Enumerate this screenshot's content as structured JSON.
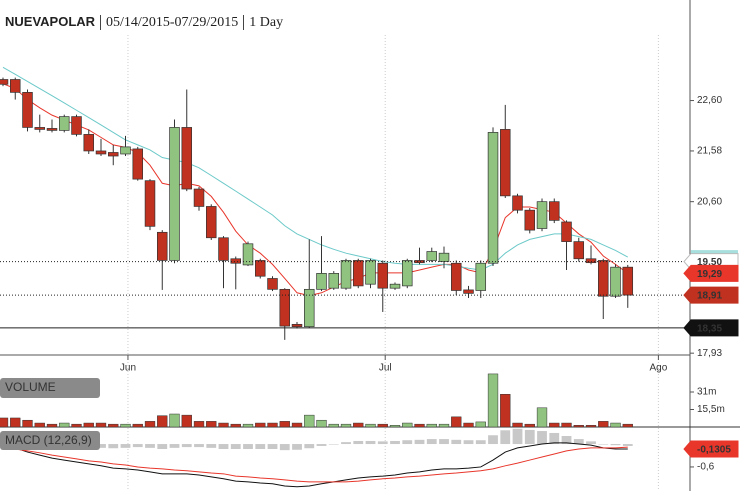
{
  "chart_data": [
    {
      "type": "candlestick",
      "title": "NUEVAPOLAR",
      "subtitle": "05/14/2015-07/29/2015",
      "interval": "1 Day",
      "log_scale": true,
      "ylim": [
        17.9,
        23.78
      ],
      "xlim": [
        -0.245,
        56.08
      ],
      "yticks": [
        {
          "value": 22.6,
          "label": "22,60"
        },
        {
          "value": 21.58,
          "label": "21,58"
        },
        {
          "value": 20.6,
          "label": "20,60"
        },
        {
          "value": 17.93,
          "label": "17,93"
        }
      ],
      "xticks": [
        {
          "value": 10.2,
          "label": "Jun"
        },
        {
          "value": 31.2,
          "label": "Jul"
        },
        {
          "value": 53.5,
          "label": "Ago"
        }
      ],
      "up_color": "#8fc37f",
      "down_color": "#c0311f",
      "open": [
        23.04,
        23.04,
        22.77,
        22.05,
        22.03,
        21.99,
        22.27,
        21.91,
        21.58,
        21.55,
        21.52,
        21.62,
        21.0,
        20.03,
        19.52,
        22.05,
        20.84,
        20.51,
        19.93,
        19.55,
        19.44,
        19.52,
        19.2,
        19.01,
        18.41,
        18.37,
        19.01,
        19.03,
        19.03,
        19.52,
        19.1,
        19.47,
        19.03,
        19.07,
        19.52,
        19.52,
        19.5,
        19.47,
        19.0,
        18.99,
        19.47,
        22.01,
        20.71,
        20.44,
        20.1,
        20.6,
        20.22,
        19.86,
        19.55,
        19.52,
        18.89,
        19.4
      ],
      "high": [
        23.08,
        23.08,
        22.83,
        22.31,
        22.21,
        22.31,
        22.31,
        22.01,
        21.82,
        21.7,
        21.88,
        21.66,
        21.03,
        20.07,
        22.21,
        22.83,
        20.88,
        20.55,
        19.96,
        19.59,
        19.86,
        19.55,
        19.24,
        19.03,
        18.45,
        19.9,
        19.96,
        19.33,
        19.55,
        19.55,
        19.55,
        19.52,
        19.13,
        19.55,
        19.75,
        19.75,
        19.77,
        19.52,
        19.07,
        19.52,
        22.05,
        22.51,
        20.75,
        20.48,
        20.66,
        20.66,
        20.25,
        19.93,
        19.79,
        19.55,
        19.45,
        19.44
      ],
      "low": [
        22.9,
        22.62,
        21.97,
        21.95,
        21.95,
        21.95,
        21.87,
        21.52,
        21.48,
        21.3,
        21.48,
        21.0,
        20.07,
        19.0,
        19.47,
        20.8,
        20.43,
        19.89,
        19.03,
        19.01,
        19.42,
        19.2,
        18.98,
        18.15,
        18.34,
        18.35,
        18.98,
        19.0,
        19.0,
        19.03,
        19.03,
        18.62,
        19.0,
        19.03,
        19.45,
        19.49,
        19.38,
        18.91,
        18.86,
        18.86,
        19.42,
        20.67,
        20.38,
        20.01,
        20.05,
        20.2,
        19.35,
        19.5,
        19.45,
        18.5,
        18.86,
        18.69
      ],
      "close": [
        22.94,
        22.77,
        22.05,
        22.01,
        21.99,
        22.27,
        21.91,
        21.58,
        21.52,
        21.48,
        21.66,
        21.03,
        20.14,
        19.52,
        22.05,
        20.84,
        20.51,
        19.93,
        19.52,
        19.47,
        19.82,
        19.24,
        19.01,
        18.38,
        18.37,
        19.01,
        19.29,
        19.29,
        19.52,
        19.07,
        19.52,
        19.03,
        19.1,
        19.52,
        19.48,
        19.68,
        19.65,
        18.99,
        18.94,
        19.47,
        21.95,
        20.71,
        20.44,
        20.07,
        20.6,
        20.25,
        19.86,
        19.55,
        19.48,
        18.89,
        19.4,
        18.91
      ],
      "overlays": [
        {
          "color": "#e8362b",
          "values": [
            22.95,
            22.85,
            22.62,
            22.45,
            22.3,
            22.2,
            22.1,
            22.0,
            21.85,
            21.7,
            21.65,
            21.55,
            21.3,
            20.95,
            20.9,
            20.95,
            20.9,
            20.7,
            20.4,
            20.05,
            19.8,
            19.65,
            19.45,
            19.2,
            18.95,
            18.9,
            18.95,
            19.05,
            19.15,
            19.2,
            19.3,
            19.3,
            19.3,
            19.3,
            19.35,
            19.4,
            19.45,
            19.45,
            19.35,
            19.3,
            19.7,
            20.3,
            20.5,
            20.5,
            20.45,
            20.4,
            20.2,
            20.0,
            19.85,
            19.6,
            19.45,
            19.29
          ]
        },
        {
          "color": "#6cc9c9",
          "values": [
            23.3,
            23.15,
            23.0,
            22.85,
            22.7,
            22.55,
            22.4,
            22.25,
            22.1,
            21.95,
            21.8,
            21.7,
            21.6,
            21.45,
            21.4,
            21.35,
            21.25,
            21.1,
            20.95,
            20.8,
            20.65,
            20.5,
            20.35,
            20.15,
            20.0,
            19.9,
            19.8,
            19.72,
            19.65,
            19.6,
            19.55,
            19.5,
            19.47,
            19.45,
            19.45,
            19.45,
            19.45,
            19.42,
            19.38,
            19.35,
            19.45,
            19.65,
            19.8,
            19.9,
            19.95,
            20.0,
            20.0,
            19.95,
            19.9,
            19.8,
            19.7,
            19.58
          ]
        }
      ],
      "price_lines": [
        {
          "value": 19.5,
          "label": "19,50",
          "color": "#ffffff",
          "line": "dotted"
        },
        {
          "value": 19.29,
          "label": "19,29",
          "color": "#e8362b"
        },
        {
          "value": 18.91,
          "label": "18,91",
          "color": "#c0311f",
          "line": "dotted"
        },
        {
          "value": 18.35,
          "label": "18,35",
          "color": "#111111",
          "line": "solid"
        }
      ]
    },
    {
      "type": "volume",
      "title": "VOLUME",
      "ylim": [
        0,
        48.7
      ],
      "yticks": [
        {
          "value": 31,
          "label": "31m"
        },
        {
          "value": 15.5,
          "label": "15,5m"
        }
      ],
      "values": [
        8,
        8,
        6,
        3.5,
        2.5,
        3.5,
        2.5,
        3.5,
        3.5,
        2.5,
        2.5,
        2.5,
        5,
        10,
        11.5,
        10.5,
        5,
        5,
        3.5,
        2.5,
        2.5,
        3.5,
        3.5,
        5,
        3.5,
        10.5,
        6,
        2.5,
        2.5,
        3.5,
        2.5,
        2.5,
        1.5,
        3.5,
        2.5,
        2.5,
        2.5,
        9,
        3.5,
        4.5,
        47,
        29,
        3.5,
        2.5,
        17,
        3.5,
        3.5,
        1.5,
        1.5,
        5,
        3.5,
        2.5
      ]
    },
    {
      "type": "macd",
      "title": "MACD (12,26,9)",
      "ylim": [
        -1.23,
        0.42
      ],
      "yticks": [
        {
          "value": -0.6,
          "label": "-0,6"
        }
      ],
      "price_lines": [
        {
          "value": -0.1305,
          "label": "-0,1305",
          "color": "#e8362b"
        }
      ],
      "histogram": {
        "color": "#c8c8c8",
        "values": [
          0.05,
          0.03,
          -0.03,
          -0.06,
          -0.08,
          -0.08,
          -0.08,
          -0.08,
          -0.1,
          -0.11,
          -0.1,
          -0.08,
          -0.1,
          -0.13,
          -0.1,
          -0.08,
          -0.08,
          -0.1,
          -0.13,
          -0.13,
          -0.13,
          -0.13,
          -0.13,
          -0.16,
          -0.15,
          -0.11,
          -0.05,
          0,
          0.05,
          0.08,
          0.08,
          0.07,
          0.08,
          0.1,
          0.11,
          0.13,
          0.13,
          0.11,
          0.1,
          0.1,
          0.23,
          0.36,
          0.4,
          0.37,
          0.34,
          0.29,
          0.21,
          0.13,
          0.07,
          0,
          -0.03,
          -0.05
        ]
      },
      "series": [
        {
          "color": "#111111",
          "values": [
            -0.03,
            -0.1,
            -0.21,
            -0.29,
            -0.37,
            -0.42,
            -0.47,
            -0.52,
            -0.57,
            -0.63,
            -0.65,
            -0.68,
            -0.73,
            -0.78,
            -0.78,
            -0.78,
            -0.81,
            -0.86,
            -0.91,
            -0.97,
            -0.99,
            -1.02,
            -1.04,
            -1.1,
            -1.12,
            -1.1,
            -1.04,
            -0.99,
            -0.94,
            -0.89,
            -0.86,
            -0.84,
            -0.81,
            -0.76,
            -0.73,
            -0.68,
            -0.65,
            -0.65,
            -0.63,
            -0.6,
            -0.42,
            -0.21,
            -0.1,
            -0.05,
            0,
            0.03,
            0.03,
            0,
            -0.03,
            -0.1,
            -0.13,
            -0.1305
          ]
        },
        {
          "color": "#e8362b",
          "values": [
            -0.08,
            -0.13,
            -0.18,
            -0.23,
            -0.29,
            -0.34,
            -0.39,
            -0.44,
            -0.47,
            -0.52,
            -0.55,
            -0.6,
            -0.63,
            -0.65,
            -0.68,
            -0.7,
            -0.73,
            -0.76,
            -0.78,
            -0.84,
            -0.86,
            -0.89,
            -0.91,
            -0.94,
            -0.97,
            -0.99,
            -0.99,
            -0.99,
            -0.99,
            -0.97,
            -0.94,
            -0.91,
            -0.89,
            -0.86,
            -0.84,
            -0.81,
            -0.78,
            -0.76,
            -0.73,
            -0.7,
            -0.65,
            -0.57,
            -0.5,
            -0.42,
            -0.34,
            -0.26,
            -0.18,
            -0.13,
            -0.1,
            -0.1,
            -0.1,
            -0.08
          ]
        }
      ]
    }
  ]
}
